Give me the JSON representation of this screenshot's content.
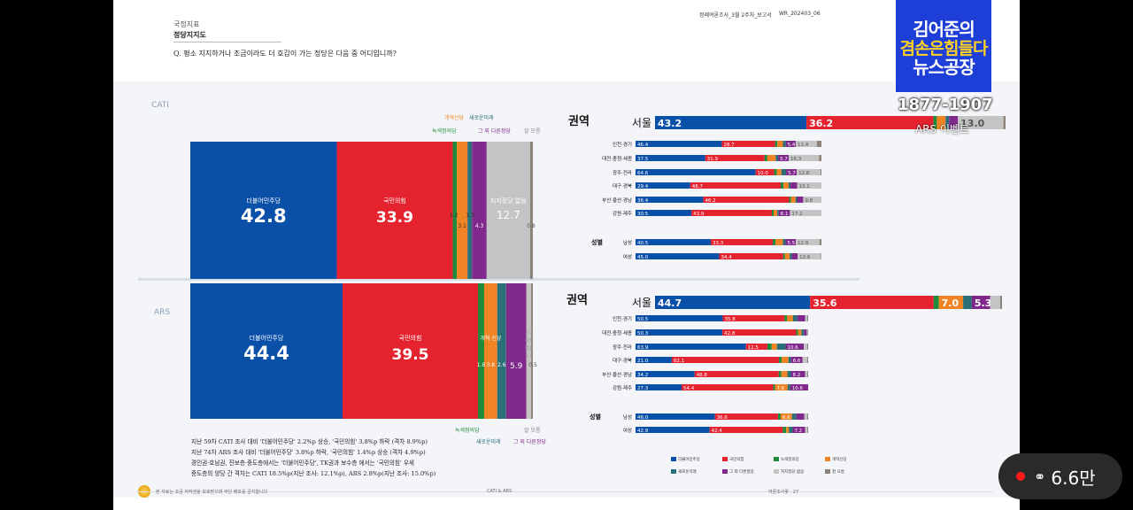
{
  "page": {
    "category": "국정지표",
    "title": "정당지지도",
    "question": "Q. 평소 지지하거나 조금이라도 더 호감이 가는 정당은 다음 중 어디입니까?",
    "report_name": "정례여론조사_3월 2주차_보고서",
    "report_code": "WR_202403_06",
    "footer_left": "본 자료는 조금 저작권을 보호받으며 무단 배포를 금지합니다",
    "footer_mid": "CATI & ARS",
    "footer_right": "여론조사꽃 · 27",
    "notes": [
      "지난 59차 CATI 조사 대비 '더불어민주당' 2.2%p 상승, '국민의힘' 3.8%p 하락 (격차 8.9%p)",
      "지난 74차 ARS 조사 대비 '더불어민주당' 3.8%p 하락, '국민의힘' 1.4%p 상승 (격차 4.9%p)",
      "경인권·호남권, 진보층·중도층에서는 '더불어민주당', TK권과 보수층 에서는 '국민의힘' 우세",
      "중도층의 양당 간 격차는 CATI 18.5%p(지난 조사: 12.1%p), ARS 2.8%p(지난 조사: 15.0%p)"
    ]
  },
  "overlay": {
    "brand_line1": "김어준의",
    "brand_line2": "겸손은힘들다",
    "brand_line3": "뉴스공장",
    "phone": "1877-1907",
    "ars_event": "ARS 이벤트",
    "viewers": "6.6만"
  },
  "colors": {
    "minjoo": "#0b50a8",
    "ppp": "#e4232f",
    "green": "#1e8a3c",
    "reform": "#f08424",
    "newfuture": "#2b6f78",
    "other": "#80288c",
    "none": "#c4c4c4",
    "dk": "#8c8278"
  },
  "chart_data": [
    {
      "type": "bar",
      "name": "CATI overall (100% stacked)",
      "survey_label": "CATI",
      "series": [
        {
          "name": "더불어민주당",
          "value": 42.8
        },
        {
          "name": "국민의힘",
          "value": 33.9
        },
        {
          "name": "녹색정의당",
          "value": 1.2
        },
        {
          "name": "개혁신당",
          "value": 3.1
        },
        {
          "name": "새로운미래",
          "value": 1.3
        },
        {
          "name": "그 외 다른정당",
          "value": 4.3
        },
        {
          "name": "지지정당 없음",
          "value": 12.7
        },
        {
          "name": "잘 모름",
          "value": 0.8
        }
      ]
    },
    {
      "type": "bar",
      "name": "ARS overall (100% stacked)",
      "survey_label": "ARS",
      "series": [
        {
          "name": "더불어민주당",
          "value": 44.4
        },
        {
          "name": "국민의힘",
          "value": 39.5
        },
        {
          "name": "녹색정의당",
          "value": 1.8
        },
        {
          "name": "개혁신당",
          "value": 3.8
        },
        {
          "name": "새로운미래",
          "value": 2.6
        },
        {
          "name": "그 외 다른정당",
          "value": 5.9
        },
        {
          "name": "지지정당 없음",
          "value": 1.4
        },
        {
          "name": "잘 모름",
          "value": 0.5
        }
      ],
      "column_labels": {
        "reform": "개혁 신당",
        "none_stack": [
          "3.3",
          "정당",
          "없음",
          "1.4"
        ]
      }
    },
    {
      "type": "bar",
      "name": "CATI by region and gender",
      "region_header": "권역",
      "gender_header": "성별",
      "categories": [
        "서울",
        "인천·경기",
        "대전·충청·세종",
        "광주·전라",
        "대구·경북",
        "부산·울산·경남",
        "강원·제주",
        "남성",
        "여성"
      ],
      "series_order": [
        "더불어민주당",
        "국민의힘",
        "녹색정의당",
        "개혁신당",
        "새로운미래",
        "그 외 다른정당",
        "지지정당 없음",
        "잘 모름"
      ],
      "rows": [
        {
          "label": "서울",
          "values": [
            43.2,
            36.2,
            1.0,
            2.5,
            1.0,
            2.5,
            13.0,
            0.6
          ],
          "shown": [
            "43.2",
            "36.2",
            "",
            "",
            "",
            "",
            "13.0",
            ""
          ]
        },
        {
          "label": "인천·경기",
          "values": [
            46.4,
            28.7,
            1.2,
            3.0,
            1.5,
            5.4,
            11.4,
            2.4
          ],
          "shown": [
            "46.4",
            "28.7",
            "",
            "",
            "",
            "5.4",
            "11.4",
            ""
          ]
        },
        {
          "label": "대전·충청·세종",
          "values": [
            37.5,
            31.9,
            1.5,
            4.5,
            1.3,
            5.7,
            16.3,
            1.3
          ],
          "shown": [
            "37.5",
            "31.9",
            "",
            "",
            "",
            "5.7",
            "16.3",
            ""
          ]
        },
        {
          "label": "광주·전라",
          "values": [
            64.6,
            10.0,
            1.4,
            2.5,
            2.5,
            5.7,
            12.8,
            0.5
          ],
          "shown": [
            "64.6",
            "10.0",
            "",
            "",
            "",
            "5.7",
            "12.8",
            ""
          ]
        },
        {
          "label": "대구·경북",
          "values": [
            29.4,
            48.7,
            1.5,
            2.8,
            1.0,
            3.5,
            13.1,
            0.0
          ],
          "shown": [
            "29.4",
            "48.7",
            "",
            "",
            "",
            "",
            "13.1",
            ""
          ]
        },
        {
          "label": "부산·울산·경남",
          "values": [
            36.4,
            46.2,
            1.0,
            2.5,
            0.8,
            3.3,
            9.8,
            0.0
          ],
          "shown": [
            "36.4",
            "46.2",
            "",
            "",
            "",
            "",
            "9.8",
            ""
          ]
        },
        {
          "label": "강원·제주",
          "values": [
            30.5,
            43.9,
            1.0,
            2.0,
            0.8,
            6.1,
            17.2,
            0.0
          ],
          "shown": [
            "30.5",
            "43.9",
            "",
            "",
            "",
            "6.1",
            "17.2",
            ""
          ]
        },
        {
          "label": "남성",
          "values": [
            40.5,
            33.3,
            1.5,
            4.0,
            1.4,
            5.5,
            12.8,
            1.0
          ],
          "shown": [
            "40.5",
            "33.3",
            "",
            "",
            "",
            "5.5",
            "12.8",
            ""
          ]
        },
        {
          "label": "여성",
          "values": [
            45.0,
            34.4,
            1.0,
            2.5,
            1.2,
            3.1,
            12.6,
            0.2
          ],
          "shown": [
            "45.0",
            "34.4",
            "",
            "",
            "",
            "",
            "12.6",
            ""
          ]
        }
      ]
    },
    {
      "type": "bar",
      "name": "ARS by region and gender",
      "region_header": "권역",
      "gender_header": "성별",
      "categories": [
        "서울",
        "인천·경기",
        "대전·충청·세종",
        "광주·전라",
        "대구·경북",
        "부산·울산·경남",
        "강원·제주",
        "남성",
        "여성"
      ],
      "series_order": [
        "더불어민주당",
        "국민의힘",
        "녹색정의당",
        "개혁신당",
        "새로운미래",
        "그 외 다른정당",
        "지지정당 없음",
        "잘 모름"
      ],
      "rows": [
        {
          "label": "서울",
          "values": [
            44.7,
            35.6,
            1.5,
            7.0,
            2.5,
            5.3,
            2.9,
            0.5
          ],
          "shown": [
            "44.7",
            "35.6",
            "",
            "7.0",
            "",
            "5.3",
            "",
            ""
          ]
        },
        {
          "label": "인천·경기",
          "values": [
            50.5,
            35.8,
            1.4,
            3.5,
            2.5,
            4.5,
            1.3,
            0.5
          ],
          "shown": [
            "50.5",
            "35.8",
            "",
            "",
            "",
            "",
            "",
            ""
          ]
        },
        {
          "label": "대전·충청·세종",
          "values": [
            50.3,
            42.8,
            1.0,
            2.0,
            1.5,
            1.6,
            0.5,
            0.3
          ],
          "shown": [
            "50.3",
            "42.8",
            "",
            "",
            "",
            "",
            "",
            ""
          ]
        },
        {
          "label": "광주·전라",
          "values": [
            63.9,
            12.5,
            2.5,
            3.0,
            5.0,
            10.6,
            2.0,
            0.5
          ],
          "shown": [
            "63.9",
            "12.5",
            "",
            "",
            "",
            "10.6",
            "",
            ""
          ]
        },
        {
          "label": "대구·경북",
          "values": [
            21.0,
            62.1,
            1.5,
            4.0,
            1.5,
            6.6,
            2.8,
            0.5
          ],
          "shown": [
            "21.0",
            "62.1",
            "",
            "",
            "",
            "6.6",
            "",
            ""
          ]
        },
        {
          "label": "부산·울산·경남",
          "values": [
            34.2,
            48.8,
            1.5,
            3.5,
            2.0,
            8.2,
            1.3,
            0.5
          ],
          "shown": [
            "34.2",
            "48.8",
            "",
            "",
            "",
            "8.2",
            "",
            ""
          ]
        },
        {
          "label": "강원·제주",
          "values": [
            27.3,
            54.4,
            1.0,
            7.6,
            1.5,
            10.6,
            0.0,
            0.0
          ],
          "shown": [
            "27.3",
            "54.4",
            "",
            "7.6",
            "",
            "10.6",
            "",
            ""
          ]
        },
        {
          "label": "남성",
          "values": [
            46.0,
            36.6,
            1.5,
            6.6,
            2.5,
            4.5,
            1.8,
            0.5
          ],
          "shown": [
            "46.0",
            "36.6",
            "",
            "6.6",
            "",
            "",
            "",
            ""
          ]
        },
        {
          "label": "여성",
          "values": [
            42.9,
            42.4,
            2.0,
            1.5,
            2.2,
            7.2,
            1.3,
            0.5
          ],
          "shown": [
            "42.9",
            "42.4",
            "",
            "",
            "",
            "7.2",
            "",
            ""
          ]
        }
      ]
    }
  ],
  "legend": [
    "더불어민주당",
    "국민의힘",
    "녹색정의당",
    "개혁신당",
    "새로운미래",
    "그 외 다른정당",
    "지지정당 없음",
    "잘 모름"
  ],
  "party_labels": {
    "minjoo": "더불어민주당",
    "ppp": "국민의힘",
    "green": "녹색정의당",
    "reform": "개혁신당",
    "newfuture": "새로운미래",
    "other": "그 외 다른정당",
    "none": "지지정당 없음",
    "dk": "잘 모름"
  }
}
